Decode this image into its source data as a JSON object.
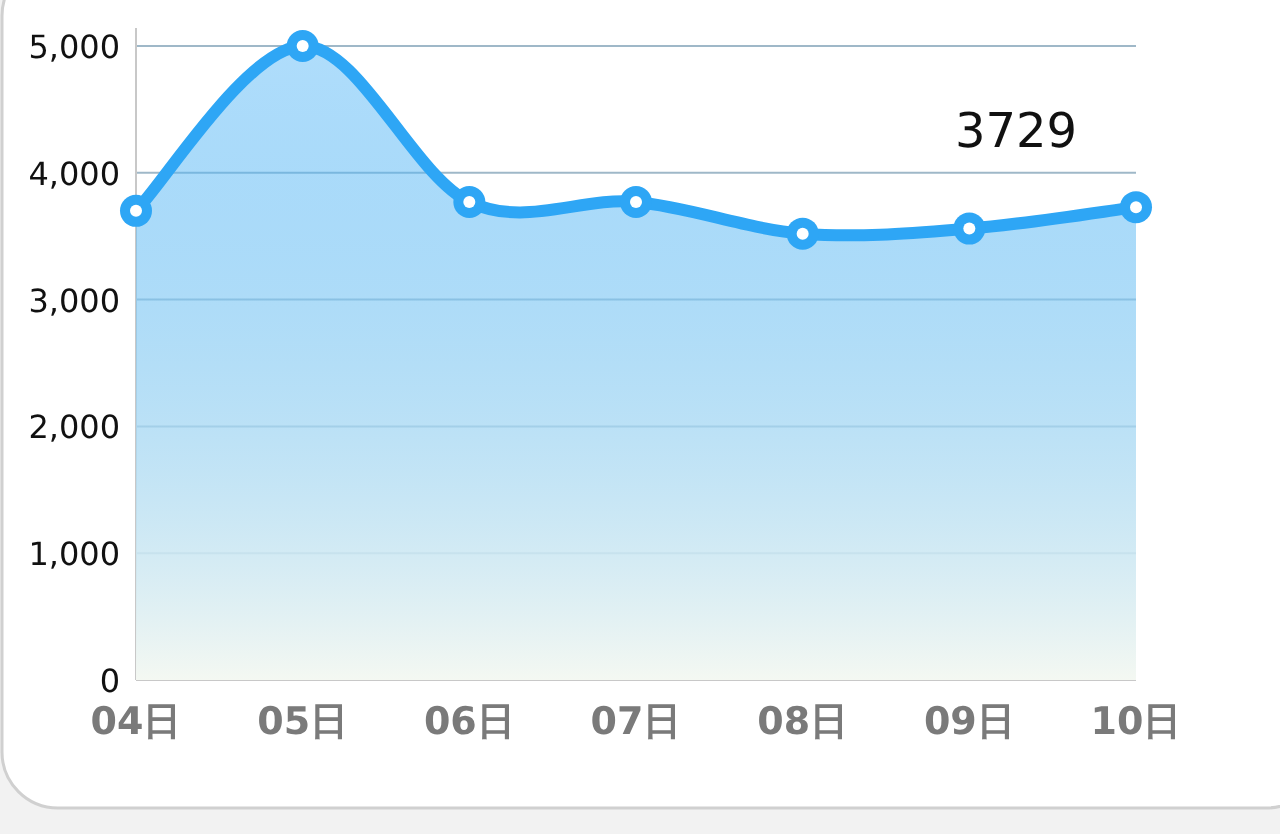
{
  "chart_data": {
    "type": "area",
    "categories": [
      "04日",
      "05日",
      "06日",
      "07日",
      "08日",
      "09日",
      "10日"
    ],
    "series": [
      {
        "color": "#2ea6f5",
        "values": [
          3700,
          5000,
          3770,
          3770,
          3520,
          3560,
          3729
        ],
        "value_labels": [
          null,
          null,
          null,
          null,
          null,
          null,
          "3729"
        ]
      }
    ],
    "ylim": [
      0,
      5000
    ],
    "yticks": [
      {
        "value": 0,
        "label": "0"
      },
      {
        "value": 1000,
        "label": "1,000"
      },
      {
        "value": 2000,
        "label": "2,000"
      },
      {
        "value": 3000,
        "label": "3,000"
      },
      {
        "value": 4000,
        "label": "4,000"
      },
      {
        "value": 5000,
        "label": "5,000"
      }
    ],
    "grid": "y",
    "marker": "circle"
  }
}
